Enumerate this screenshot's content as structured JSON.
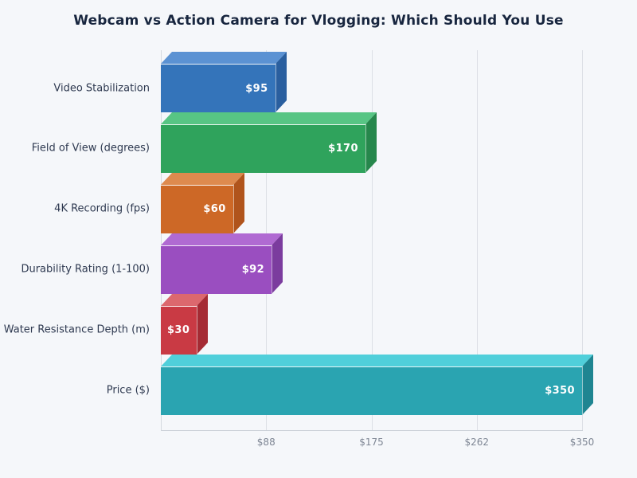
{
  "chart_data": {
    "type": "bar",
    "orientation": "horizontal",
    "title": "Webcam vs Action Camera for Vlogging: Which Should You Use",
    "categories": [
      "Video Stabilization",
      "Field of View (degrees)",
      "4K Recording (fps)",
      "Durability Rating (1-100)",
      "Water Resistance Depth (m)",
      "Price ($)"
    ],
    "values": [
      95,
      170,
      60,
      92,
      30,
      350
    ],
    "value_labels": [
      "$95",
      "$170",
      "$60",
      "$92",
      "$30",
      "$350"
    ],
    "xlim": [
      0,
      350
    ],
    "x_tick_values": [
      87.5,
      175,
      262.5,
      350
    ],
    "x_tick_labels": [
      "$88",
      "$175",
      "$262",
      "$350"
    ],
    "grid": true,
    "legend": "none",
    "bar_style": "3d",
    "bar_colors": [
      {
        "front": "#3474ba",
        "top": "#5b92d3",
        "side": "#2a5f9f"
      },
      {
        "front": "#2fa35c",
        "top": "#57c584",
        "side": "#26874c"
      },
      {
        "front": "#cd6826",
        "top": "#de8a4e",
        "side": "#b0541c"
      },
      {
        "front": "#9a4ec0",
        "top": "#b06ad2",
        "side": "#7b3c9e"
      },
      {
        "front": "#c93a44",
        "top": "#dc686e",
        "side": "#a52b34"
      },
      {
        "front": "#2aa4b1",
        "top": "#50cfda",
        "side": "#1f8591"
      }
    ],
    "colors": {
      "background": "#f5f7fa",
      "title_text": "#18263f",
      "category_text": "#2e3950",
      "tick_text": "#7e8694",
      "gridline": "#dcdfe5",
      "axis_line": "#c9ced5",
      "value_text": "#ffffff"
    }
  }
}
